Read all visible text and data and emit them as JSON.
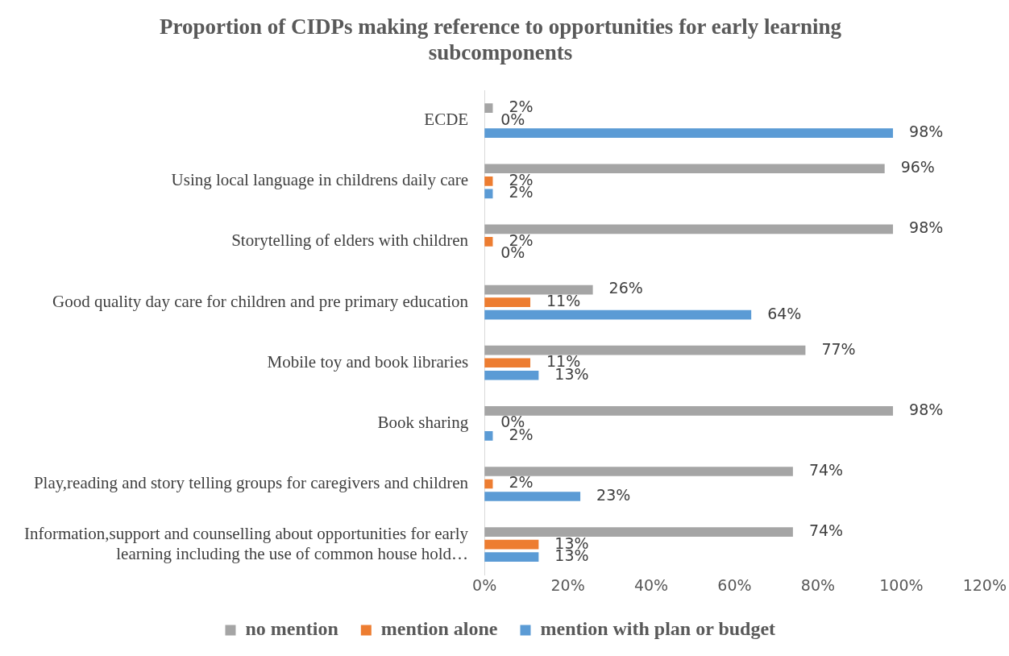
{
  "chart_data": {
    "type": "bar",
    "orientation": "horizontal",
    "title": "Proportion of CIDPs making reference to opportunities for early learning subcomponents",
    "categories": [
      "ECDE",
      "Using local language in childrens daily care",
      "Storytelling of elders with children",
      "Good quality day care for children and pre primary education",
      "Mobile toy and book libraries",
      "Book sharing",
      "Play,reading and story telling groups for caregivers and children",
      "Information,support and counselling about opportunities for early learning including the use of common house hold…"
    ],
    "series": [
      {
        "name": "no mention",
        "color": "#a5a5a5",
        "values": [
          2,
          96,
          98,
          26,
          77,
          98,
          74,
          74
        ],
        "value_labels": [
          "2%",
          "96%",
          "98%",
          "26%",
          "77%",
          "98%",
          "74%",
          "74%"
        ]
      },
      {
        "name": "mention alone",
        "color": "#ed7d31",
        "values": [
          0,
          2,
          2,
          11,
          11,
          0,
          2,
          13
        ],
        "value_labels": [
          "0%",
          "2%",
          "2%",
          "11%",
          "11%",
          "0%",
          "2%",
          "13%"
        ]
      },
      {
        "name": "mention with plan or budget",
        "color": "#5b9bd5",
        "values": [
          98,
          2,
          0,
          64,
          13,
          2,
          23,
          13
        ],
        "value_labels": [
          "98%",
          "2%",
          "0%",
          "64%",
          "13%",
          "2%",
          "23%",
          "13%"
        ]
      }
    ],
    "xlim": [
      0,
      120
    ],
    "xticks": [
      {
        "value": 0,
        "label": "0%"
      },
      {
        "value": 20,
        "label": "20%"
      },
      {
        "value": 40,
        "label": "40%"
      },
      {
        "value": 60,
        "label": "60%"
      },
      {
        "value": 80,
        "label": "80%"
      },
      {
        "value": 100,
        "label": "100%"
      },
      {
        "value": 120,
        "label": "120%"
      }
    ],
    "grid": false,
    "legend": "bottom"
  }
}
